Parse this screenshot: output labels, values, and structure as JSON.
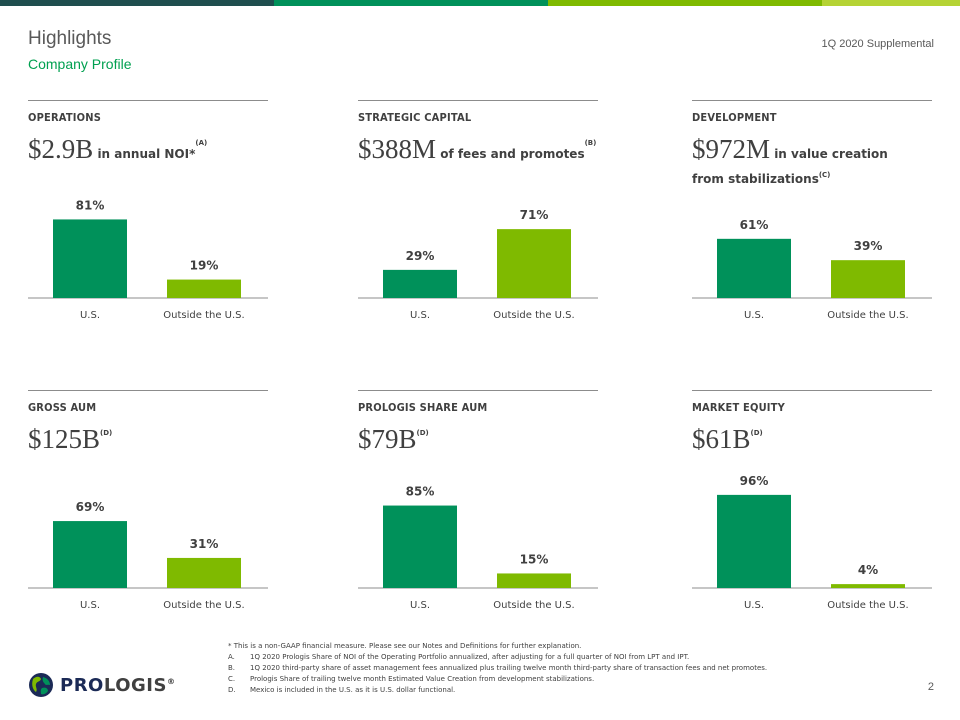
{
  "header": {
    "title": "Highlights",
    "subtitle": "Company Profile",
    "doc_label": "1Q 2020 Supplemental"
  },
  "colors": {
    "us_bar": "#00915a",
    "outside_bar": "#7fba00",
    "top_bar": [
      "#1f4e4e",
      "#00915a",
      "#7fba00",
      "#b5d334"
    ]
  },
  "panels": [
    {
      "heading": "OPERATIONS",
      "big": "$2.9B",
      "desc": " in annual NOI*",
      "sup": "(A)",
      "desc2": ""
    },
    {
      "heading": "STRATEGIC CAPITAL",
      "big": "$388M",
      "desc": " of fees and promotes",
      "sup": "(B)",
      "desc2": ""
    },
    {
      "heading": "DEVELOPMENT",
      "big": "$972M",
      "desc": " in value creation",
      "sup": "",
      "desc2": "from stabilizations",
      "sup2": "(C)"
    },
    {
      "heading": "GROSS AUM",
      "big": "$125B",
      "desc": "",
      "sup": "(D)",
      "desc2": ""
    },
    {
      "heading": "PROLOGIS SHARE AUM",
      "big": "$79B",
      "desc": "",
      "sup": "(D)",
      "desc2": ""
    },
    {
      "heading": "MARKET EQUITY",
      "big": "$61B",
      "desc": "",
      "sup": "(D)",
      "desc2": ""
    }
  ],
  "chart_data": [
    {
      "type": "bar",
      "categories": [
        "U.S.",
        "Outside the U.S."
      ],
      "values": [
        81,
        19
      ],
      "value_labels": [
        "81%",
        "19%"
      ],
      "ylim": [
        0,
        100
      ]
    },
    {
      "type": "bar",
      "categories": [
        "U.S.",
        "Outside the U.S."
      ],
      "values": [
        29,
        71
      ],
      "value_labels": [
        "29%",
        "71%"
      ],
      "ylim": [
        0,
        100
      ]
    },
    {
      "type": "bar",
      "categories": [
        "U.S.",
        "Outside the U.S."
      ],
      "values": [
        61,
        39
      ],
      "value_labels": [
        "61%",
        "39%"
      ],
      "ylim": [
        0,
        100
      ]
    },
    {
      "type": "bar",
      "categories": [
        "U.S.",
        "Outside the U.S."
      ],
      "values": [
        69,
        31
      ],
      "value_labels": [
        "69%",
        "31%"
      ],
      "ylim": [
        0,
        100
      ]
    },
    {
      "type": "bar",
      "categories": [
        "U.S.",
        "Outside the U.S."
      ],
      "values": [
        85,
        15
      ],
      "value_labels": [
        "85%",
        "15%"
      ],
      "ylim": [
        0,
        100
      ]
    },
    {
      "type": "bar",
      "categories": [
        "U.S.",
        "Outside the U.S."
      ],
      "values": [
        96,
        4
      ],
      "value_labels": [
        "96%",
        "4%"
      ],
      "ylim": [
        0,
        100
      ]
    }
  ],
  "footnotes": {
    "intro": "* This is a non-GAAP financial measure. Please see our Notes and Definitions for further explanation.",
    "items": [
      {
        "letter": "A.",
        "text": "1Q 2020 Prologis Share of NOI of the Operating Portfolio annualized, after adjusting for a full quarter of NOI from LPT and IPT."
      },
      {
        "letter": "B.",
        "text": "1Q 2020 third-party share of asset management fees annualized plus trailing twelve month third-party share of transaction fees and net promotes."
      },
      {
        "letter": "C.",
        "text": "Prologis Share of trailing twelve month Estimated Value Creation from development stabilizations."
      },
      {
        "letter": "D.",
        "text": "Mexico is included in the U.S. as it is U.S. dollar functional."
      }
    ]
  },
  "logo": {
    "pro": "PRO",
    "logis": "LOGIS",
    "mark": "®"
  },
  "page_number": "2"
}
